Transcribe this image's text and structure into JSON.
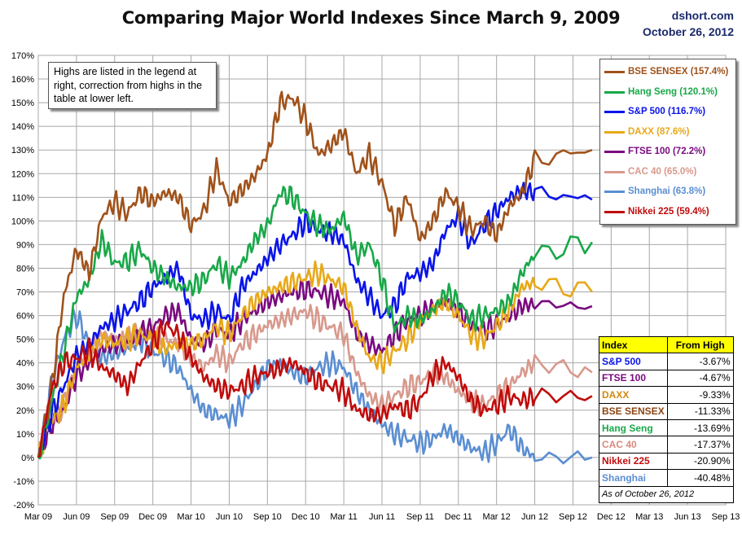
{
  "chart_data": {
    "type": "line",
    "title": "Comparing Major World Indexes Since March 9, 2009",
    "source": "dshort.com",
    "date": "October 26, 2012",
    "note": "Highs are listed in the legend at right, correction from highs in the table at lower left.",
    "xlabel": "",
    "ylabel": "",
    "ylim": [
      -20,
      170
    ],
    "yticks": [
      -20,
      -10,
      0,
      10,
      20,
      30,
      40,
      50,
      60,
      70,
      80,
      90,
      100,
      110,
      120,
      130,
      140,
      150,
      160,
      170
    ],
    "ytick_labels": [
      "-20%",
      "-10%",
      "0%",
      "10%",
      "20%",
      "30%",
      "40%",
      "50%",
      "60%",
      "70%",
      "80%",
      "90%",
      "100%",
      "110%",
      "120%",
      "130%",
      "140%",
      "150%",
      "160%",
      "170%"
    ],
    "xticks": [
      "Mar 09",
      "Jun 09",
      "Sep 09",
      "Dec 09",
      "Mar 10",
      "Jun 10",
      "Sep 10",
      "Dec 10",
      "Mar 11",
      "Jun 11",
      "Sep 11",
      "Dec 11",
      "Mar 12",
      "Jun 12",
      "Sep 12",
      "Dec 12",
      "Mar 13",
      "Jun 13",
      "Sep 13"
    ],
    "grid": true,
    "legend_position": "top-right",
    "series": [
      {
        "name": "BSE SENSEX",
        "label": "BSE SENSEX (157.4%)",
        "high": "157.4%",
        "color": "#a0521a",
        "x": [
          0,
          1,
          2,
          3,
          4,
          5,
          6,
          7,
          8,
          9,
          10,
          11,
          12,
          13,
          14,
          15,
          16,
          17,
          18,
          19,
          20,
          21,
          22,
          23,
          24,
          25,
          26,
          27,
          28,
          29,
          30,
          31,
          32,
          33,
          34,
          35,
          36,
          37,
          38,
          39,
          43.5
        ],
        "values": [
          0,
          28,
          68,
          88,
          78,
          102,
          108,
          103,
          112,
          108,
          112,
          110,
          98,
          104,
          122,
          108,
          113,
          119,
          128,
          150,
          152,
          143,
          128,
          132,
          138,
          120,
          128,
          116,
          98,
          110,
          92,
          100,
          112,
          106,
          96,
          100,
          94,
          106,
          112,
          126,
          130
        ]
      },
      {
        "name": "Hang Seng",
        "label": "Hang Seng (120.1%)",
        "high": "120.1%",
        "color": "#18a848",
        "x": [
          0,
          1,
          2,
          3,
          4,
          5,
          6,
          7,
          8,
          9,
          10,
          11,
          12,
          13,
          14,
          15,
          16,
          17,
          18,
          19,
          20,
          21,
          22,
          23,
          24,
          25,
          26,
          27,
          28,
          29,
          30,
          31,
          32,
          33,
          34,
          35,
          36,
          37,
          38,
          39,
          43.5
        ],
        "values": [
          0,
          22,
          45,
          68,
          75,
          92,
          82,
          83,
          88,
          80,
          76,
          72,
          72,
          75,
          82,
          76,
          82,
          92,
          98,
          112,
          110,
          103,
          98,
          96,
          102,
          85,
          90,
          75,
          55,
          60,
          58,
          62,
          70,
          66,
          58,
          60,
          62,
          66,
          78,
          86,
          91
        ]
      },
      {
        "name": "S&P 500",
        "label": "S&P 500 (116.7%)",
        "high": "116.7%",
        "color": "#0a14e8",
        "x": [
          0,
          1,
          2,
          3,
          4,
          5,
          6,
          7,
          8,
          9,
          10,
          11,
          12,
          13,
          14,
          15,
          16,
          17,
          18,
          19,
          20,
          21,
          22,
          23,
          24,
          25,
          26,
          27,
          28,
          29,
          30,
          31,
          32,
          33,
          34,
          35,
          36,
          37,
          38,
          39,
          43.5
        ],
        "values": [
          0,
          18,
          30,
          43,
          48,
          55,
          58,
          62,
          66,
          72,
          76,
          80,
          60,
          58,
          62,
          58,
          72,
          78,
          84,
          90,
          94,
          100,
          96,
          95,
          92,
          75,
          68,
          60,
          64,
          76,
          78,
          82,
          96,
          102,
          90,
          98,
          104,
          110,
          113,
          112,
          109
        ]
      },
      {
        "name": "DAXX",
        "label": "DAXX (87.6%)",
        "high": "87.6%",
        "color": "#e8a818",
        "x": [
          0,
          1,
          2,
          3,
          4,
          5,
          6,
          7,
          8,
          9,
          10,
          11,
          12,
          13,
          14,
          15,
          16,
          17,
          18,
          19,
          20,
          21,
          22,
          23,
          24,
          25,
          26,
          27,
          28,
          29,
          30,
          31,
          32,
          33,
          34,
          35,
          36,
          37,
          38,
          39,
          43.5
        ],
        "values": [
          0,
          15,
          22,
          38,
          44,
          50,
          48,
          50,
          52,
          50,
          46,
          48,
          48,
          50,
          56,
          52,
          60,
          66,
          70,
          72,
          74,
          76,
          78,
          75,
          72,
          55,
          42,
          40,
          45,
          50,
          58,
          62,
          66,
          60,
          52,
          50,
          56,
          62,
          72,
          74,
          70
        ]
      },
      {
        "name": "FTSE 100",
        "label": "FTSE 100 (72.2%)",
        "high": "72.2%",
        "color": "#7a0a80",
        "x": [
          0,
          1,
          2,
          3,
          4,
          5,
          6,
          7,
          8,
          9,
          10,
          11,
          12,
          13,
          14,
          15,
          16,
          17,
          18,
          19,
          20,
          21,
          22,
          23,
          24,
          25,
          26,
          27,
          28,
          29,
          30,
          31,
          32,
          33,
          34,
          35,
          36,
          37,
          38,
          39,
          43.5
        ],
        "values": [
          0,
          14,
          20,
          35,
          40,
          46,
          48,
          48,
          52,
          55,
          60,
          62,
          50,
          48,
          54,
          52,
          58,
          62,
          66,
          68,
          70,
          71,
          70,
          68,
          66,
          52,
          48,
          45,
          52,
          58,
          60,
          64,
          66,
          62,
          56,
          54,
          56,
          60,
          64,
          65,
          64
        ]
      },
      {
        "name": "CAC 40",
        "label": "CAC 40 (65.0%)",
        "high": "65.0%",
        "color": "#d8988c",
        "x": [
          0,
          1,
          2,
          3,
          4,
          5,
          6,
          7,
          8,
          9,
          10,
          11,
          12,
          13,
          14,
          15,
          16,
          17,
          18,
          19,
          20,
          21,
          22,
          23,
          24,
          25,
          26,
          27,
          28,
          29,
          30,
          31,
          32,
          33,
          34,
          35,
          36,
          37,
          38,
          39,
          43.5
        ],
        "values": [
          0,
          15,
          22,
          38,
          44,
          52,
          50,
          50,
          54,
          52,
          50,
          48,
          42,
          38,
          44,
          40,
          48,
          52,
          56,
          58,
          60,
          62,
          58,
          55,
          52,
          36,
          26,
          22,
          26,
          30,
          32,
          36,
          34,
          28,
          24,
          22,
          26,
          30,
          36,
          40,
          36
        ]
      },
      {
        "name": "Shanghai",
        "label": "Shanghai (63.8%)",
        "high": "63.8%",
        "color": "#5a8ed2",
        "x": [
          0,
          1,
          2,
          3,
          4,
          5,
          6,
          7,
          8,
          9,
          10,
          11,
          12,
          13,
          14,
          15,
          16,
          17,
          18,
          19,
          20,
          21,
          22,
          23,
          24,
          25,
          26,
          27,
          28,
          29,
          30,
          31,
          32,
          33,
          34,
          35,
          36,
          37,
          38,
          39,
          43.5
        ],
        "values": [
          0,
          30,
          50,
          60,
          48,
          42,
          44,
          46,
          50,
          45,
          42,
          38,
          28,
          20,
          18,
          16,
          22,
          30,
          38,
          40,
          36,
          34,
          38,
          40,
          38,
          28,
          20,
          14,
          10,
          8,
          6,
          8,
          12,
          8,
          4,
          2,
          6,
          12,
          4,
          0,
          0
        ]
      },
      {
        "name": "Nikkei 225",
        "label": "Nikkei 225 (59.4%)",
        "high": "59.4%",
        "color": "#c00c0c",
        "x": [
          0,
          1,
          2,
          3,
          4,
          5,
          6,
          7,
          8,
          9,
          10,
          11,
          12,
          13,
          14,
          15,
          16,
          17,
          18,
          19,
          20,
          21,
          22,
          23,
          24,
          25,
          26,
          27,
          28,
          29,
          30,
          31,
          32,
          33,
          34,
          35,
          36,
          37,
          38,
          39,
          43.5
        ],
        "values": [
          0,
          28,
          40,
          42,
          45,
          38,
          35,
          30,
          40,
          48,
          56,
          52,
          42,
          34,
          30,
          28,
          30,
          34,
          36,
          38,
          40,
          36,
          32,
          30,
          28,
          20,
          18,
          18,
          22,
          20,
          24,
          35,
          40,
          34,
          24,
          20,
          22,
          26,
          24,
          26,
          26
        ]
      }
    ],
    "table": {
      "headers": [
        "Index",
        "From High"
      ],
      "rows": [
        {
          "name": "S&P 500",
          "value": "-3.67%",
          "color": "#0a14e8"
        },
        {
          "name": "FTSE 100",
          "value": "-4.67%",
          "color": "#7a0a80"
        },
        {
          "name": "DAXX",
          "value": "-9.33%",
          "color": "#d08a10"
        },
        {
          "name": "BSE SENSEX",
          "value": "-11.33%",
          "color": "#8b4513"
        },
        {
          "name": "Hang Seng",
          "value": "-13.69%",
          "color": "#18a848"
        },
        {
          "name": "CAC 40",
          "value": "-17.37%",
          "color": "#d88a7c"
        },
        {
          "name": "Nikkei 225",
          "value": "-20.90%",
          "color": "#c00c0c"
        },
        {
          "name": "Shanghai",
          "value": "-40.48%",
          "color": "#5a8ed2"
        }
      ],
      "footnote": "As of October 26, 2012"
    }
  }
}
